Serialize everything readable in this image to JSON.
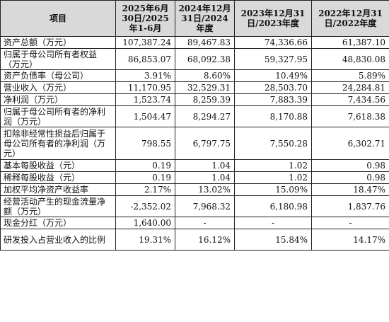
{
  "headers": [
    "项目",
    "2025年6月30日/2025年1-6月",
    "2024年12月31日/2024年度",
    "2023年12月31日/2023年度",
    "2022年12月31日/2022年度"
  ],
  "rows": [
    {
      "item": "资产总额（万元）",
      "v": [
        "107,387.24",
        "89,467.83",
        "74,336.66",
        "61,387.10"
      ]
    },
    {
      "item": "归属于母公司所有者权益（万元）",
      "v": [
        "86,853.07",
        "68,092.38",
        "59,327.95",
        "48,830.08"
      ]
    },
    {
      "item": "资产负债率（母公司）",
      "v": [
        "3.91%",
        "8.60%",
        "10.49%",
        "5.89%"
      ]
    },
    {
      "item": "营业收入（万元）",
      "v": [
        "11,170.95",
        "32,529.31",
        "28,503.70",
        "24,284.81"
      ]
    },
    {
      "item": "净利润（万元）",
      "v": [
        "1,523.74",
        "8,259.39",
        "7,883.39",
        "7,434.56"
      ]
    },
    {
      "item": "归属于母公司所有者的净利润（万元）",
      "v": [
        "1,504.47",
        "8,294.27",
        "8,170.88",
        "7,618.38"
      ]
    },
    {
      "item": "扣除非经常性损益后归属于母公司所有者的净利润（万元）",
      "v": [
        "798.55",
        "6,797.75",
        "7,550.28",
        "6,302.71"
      ]
    },
    {
      "item": "基本每股收益（元）",
      "v": [
        "0.19",
        "1.04",
        "1.02",
        "0.98"
      ]
    },
    {
      "item": "稀释每股收益（元）",
      "v": [
        "0.19",
        "1.04",
        "1.02",
        "0.98"
      ]
    },
    {
      "item": "加权平均净资产收益率",
      "v": [
        "2.17%",
        "13.02%",
        "15.09%",
        "18.47%"
      ]
    },
    {
      "item": "经营活动产生的现金流量净额（万元）",
      "v": [
        "-2,352.02",
        "7,968.32",
        "6,180.98",
        "1,837.76"
      ]
    },
    {
      "item": "现金分红（万元）",
      "v": [
        "1,640.00",
        "-",
        "-",
        "-"
      ]
    },
    {
      "item": "研发投入占营业收入的比例",
      "v": [
        "19.31%",
        "16.12%",
        "15.84%",
        "14.17%"
      ]
    }
  ]
}
